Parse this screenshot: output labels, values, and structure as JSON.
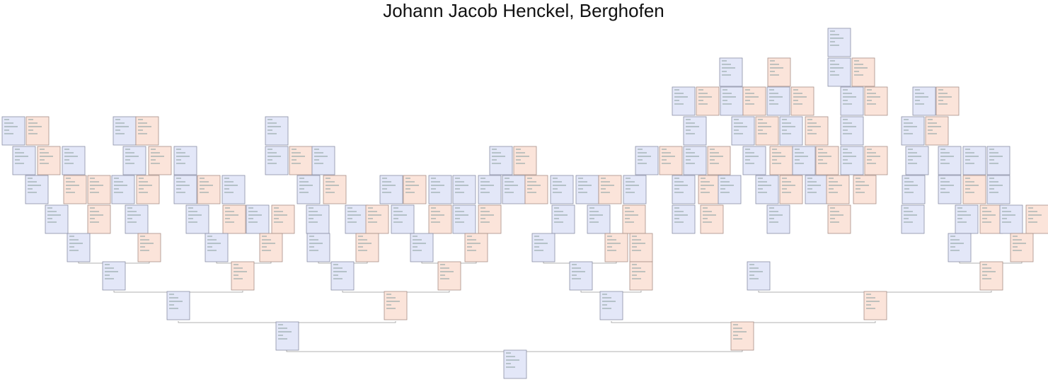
{
  "title": "Johann Jacob Henckel, Berghofen"
}
